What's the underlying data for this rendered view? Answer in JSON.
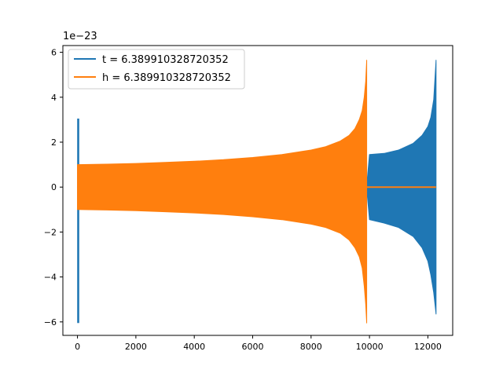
{
  "chart_data": {
    "type": "line",
    "title": "",
    "xlabel": "",
    "ylabel": "",
    "y_offset_label": "1e−23",
    "xlim": [
      -500,
      12850
    ],
    "ylim": [
      -6.6,
      6.3
    ],
    "x_ticks": [
      0,
      2000,
      4000,
      6000,
      8000,
      10000,
      12000
    ],
    "y_ticks": [
      -6,
      -4,
      -2,
      0,
      2,
      4,
      6
    ],
    "x_tick_labels": [
      "0",
      "2000",
      "4000",
      "6000",
      "8000",
      "10000",
      "12000"
    ],
    "y_tick_labels": [
      "−6",
      "−4",
      "−2",
      "0",
      "2",
      "4",
      "6"
    ],
    "grid": false,
    "legend_position": "top-left",
    "series": [
      {
        "name": "t = 6.389910328720352",
        "color": "#1f77b4",
        "transient": {
          "x": [
            -10,
            60
          ],
          "upper": 3.05,
          "lower": -6.05
        },
        "envelope_x": [
          0,
          2000,
          4000,
          6000,
          8000,
          9000,
          9900,
          10000,
          10500,
          11000,
          11500,
          11800,
          12000,
          12100,
          12200,
          12280
        ],
        "envelope_upper": [
          0.0,
          0.0,
          0.0,
          0.0,
          0.0,
          0.0,
          0.0,
          1.45,
          1.5,
          1.65,
          1.95,
          2.3,
          2.7,
          3.1,
          3.9,
          5.65
        ],
        "envelope_lower": [
          0.0,
          0.0,
          0.0,
          0.0,
          0.0,
          0.0,
          0.0,
          -1.45,
          -1.6,
          -1.8,
          -2.2,
          -2.7,
          -3.3,
          -3.9,
          -4.7,
          -5.65
        ]
      },
      {
        "name": "h = 6.389910328720352",
        "color": "#ff7f0e",
        "transient": {
          "x": [
            -10,
            60
          ],
          "upper": 1.0,
          "lower": -1.0
        },
        "envelope_x": [
          0,
          1000,
          2000,
          3000,
          4000,
          5000,
          6000,
          7000,
          8000,
          8500,
          9000,
          9300,
          9500,
          9650,
          9750,
          9820,
          9870,
          9905
        ],
        "envelope_upper": [
          1.0,
          1.02,
          1.05,
          1.1,
          1.15,
          1.22,
          1.32,
          1.45,
          1.65,
          1.8,
          2.05,
          2.3,
          2.6,
          3.0,
          3.4,
          4.0,
          4.7,
          5.65
        ],
        "envelope_lower": [
          -1.0,
          -1.02,
          -1.05,
          -1.1,
          -1.15,
          -1.22,
          -1.32,
          -1.45,
          -1.65,
          -1.8,
          -2.05,
          -2.35,
          -2.7,
          -3.1,
          -3.6,
          -4.4,
          -5.2,
          -6.05
        ],
        "flat_after": {
          "x": [
            9905,
            12280
          ],
          "y": 0
        }
      }
    ]
  }
}
